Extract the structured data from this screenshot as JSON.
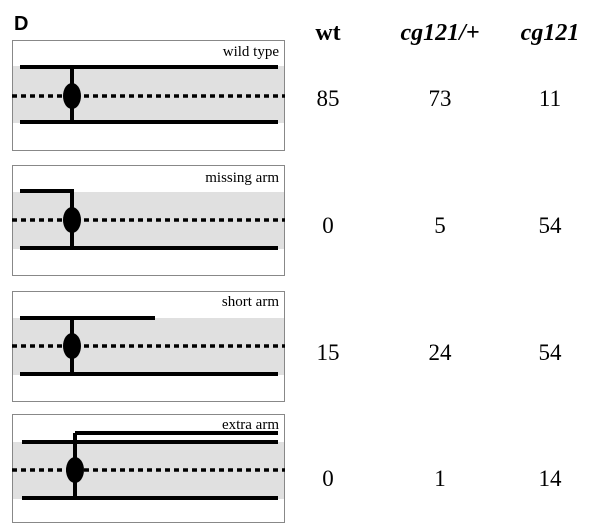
{
  "panel_label": "D",
  "columns": [
    "wt",
    "cg121/+",
    "cg121"
  ],
  "rows": [
    {
      "label": "wild type",
      "values": [
        85,
        73,
        11
      ]
    },
    {
      "label": "missing arm",
      "values": [
        0,
        5,
        54
      ]
    },
    {
      "label": "short arm",
      "values": [
        15,
        24,
        54
      ]
    },
    {
      "label": "extra arm",
      "values": [
        0,
        1,
        14
      ]
    }
  ]
}
